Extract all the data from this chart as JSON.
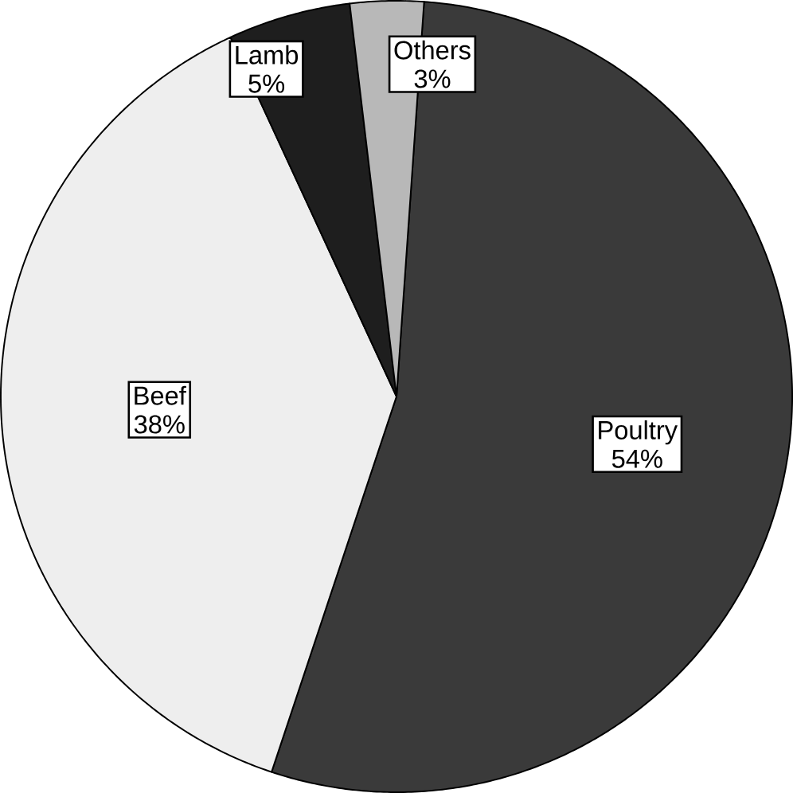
{
  "chart_data": {
    "type": "pie",
    "categories": [
      "Poultry",
      "Beef",
      "Lamb",
      "Others"
    ],
    "values": [
      54,
      38,
      5,
      3
    ],
    "colors": [
      "#3a3a3a",
      "#eeeeee",
      "#1e1e1e",
      "#b8b8b8"
    ],
    "value_labels": [
      "54%",
      "38%",
      "5%",
      "3%"
    ]
  }
}
